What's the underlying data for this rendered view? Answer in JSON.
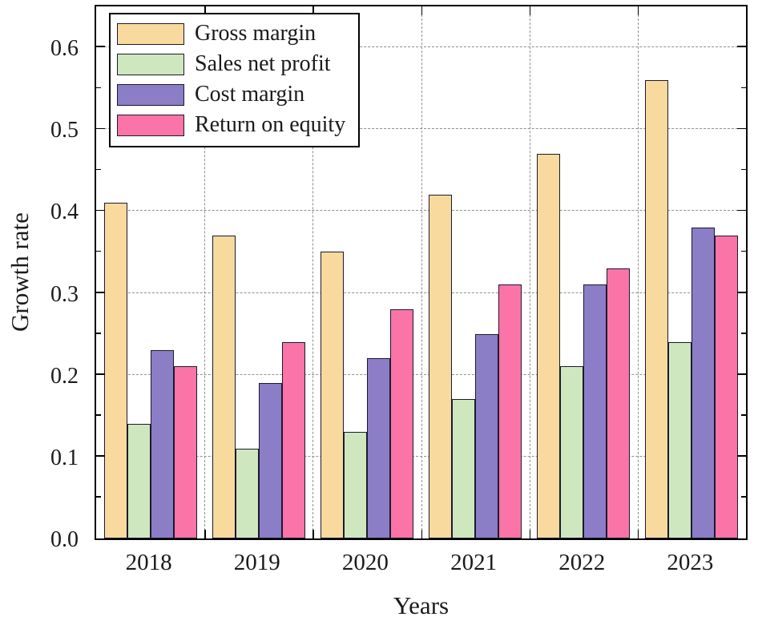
{
  "chart_data": {
    "type": "bar",
    "title": "",
    "xlabel": "Years",
    "ylabel": "Growth rate",
    "categories": [
      "2018",
      "2019",
      "2020",
      "2021",
      "2022",
      "2023"
    ],
    "series": [
      {
        "name": "Gross margin",
        "color": "#F8D99E",
        "values": [
          0.41,
          0.37,
          0.35,
          0.42,
          0.47,
          0.56
        ]
      },
      {
        "name": "Sales net profit",
        "color": "#CFE7BF",
        "values": [
          0.14,
          0.11,
          0.13,
          0.17,
          0.21,
          0.24
        ]
      },
      {
        "name": "Cost margin",
        "color": "#8B7DC6",
        "values": [
          0.23,
          0.19,
          0.22,
          0.25,
          0.31,
          0.38
        ]
      },
      {
        "name": "Return on equity",
        "color": "#FA74A8",
        "values": [
          0.21,
          0.24,
          0.28,
          0.31,
          0.33,
          0.37
        ]
      }
    ],
    "ylim": [
      0,
      0.65
    ],
    "yticks": [
      0.0,
      0.1,
      0.2,
      0.3,
      0.4,
      0.5,
      0.6
    ],
    "y_minor_step": 0.05,
    "grid": "dashed",
    "legend_position": "top-left",
    "bar_edge_color": "#1a1a2e",
    "frame_color": "#000000"
  }
}
